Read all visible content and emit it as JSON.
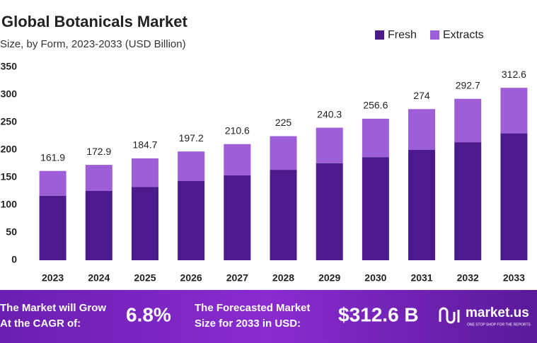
{
  "chart_data": {
    "type": "stacked_bar",
    "title": "Global Botanicals Market",
    "subtitle": "Size, by Form, 2023-2033 (USD Billion)",
    "categories": [
      "2023",
      "2024",
      "2025",
      "2026",
      "2027",
      "2028",
      "2029",
      "2030",
      "2031",
      "2032",
      "2033"
    ],
    "series": [
      {
        "name": "Fresh",
        "color": "#4b1a8c",
        "values": [
          117,
          126,
          133,
          144,
          154,
          164,
          176,
          187,
          200,
          214,
          230
        ]
      },
      {
        "name": "Extracts",
        "color": "#9d5ed8",
        "values": [
          44.9,
          46.9,
          51.7,
          53.2,
          56.6,
          61.0,
          64.3,
          69.6,
          74.0,
          78.7,
          82.6
        ]
      }
    ],
    "totals": [
      161.9,
      172.9,
      184.7,
      197.2,
      210.6,
      225.0,
      240.3,
      256.6,
      274.0,
      292.7,
      312.6
    ],
    "ylim": [
      0,
      350
    ],
    "yticks": [
      0,
      50,
      100,
      150,
      200,
      250,
      300,
      350
    ],
    "grid": false,
    "legend": "top-right"
  },
  "footer": {
    "cagr_text": [
      "The Market will Grow",
      "At the CAGR of:"
    ],
    "cagr": "6.8%",
    "forecast_text": [
      "The Forecasted Market",
      "Size for 2033 in USD:"
    ],
    "forecast": "$312.6 B",
    "brand": "market.us",
    "tagline": "ONE STOP SHOP FOR THE REPORTS"
  }
}
